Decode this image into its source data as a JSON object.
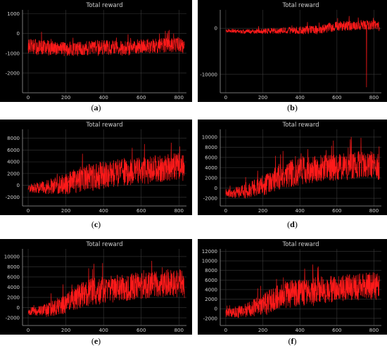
{
  "styles": {
    "bg": "#000000",
    "grid": "#3a3a3a",
    "axis": "#9a9a9a",
    "line": "#ff1a1a",
    "title": "#cfcfcf",
    "tick": "#d0d0d0"
  },
  "chart_data": [
    {
      "type": "line",
      "caption_letter": "a",
      "title": "Total reward",
      "xlim": [
        -30,
        840
      ],
      "ylim": [
        -3000,
        1200
      ],
      "xticks": [
        0,
        200,
        400,
        600,
        800
      ],
      "yticks": [
        -2000,
        -1000,
        0,
        1000
      ],
      "ytick_labels": [
        "-2000",
        "-1000",
        "0",
        "1000"
      ],
      "n_points": 830,
      "series": [
        {
          "x": [
            0,
            100,
            200,
            300,
            400,
            500,
            600,
            700,
            800,
            830
          ],
          "y": [
            -650,
            -700,
            -800,
            -750,
            -700,
            -750,
            -650,
            -600,
            -550,
            -700
          ]
        }
      ]
    },
    {
      "type": "line",
      "caption_letter": "b",
      "title": "Total reward",
      "xlim": [
        -30,
        840
      ],
      "ylim": [
        -14000,
        4000
      ],
      "xticks": [
        0,
        200,
        400,
        600,
        800
      ],
      "yticks": [
        -10000,
        0
      ],
      "ytick_labels": [
        "-10000",
        "0"
      ],
      "n_points": 830,
      "series": [
        {
          "x": [
            0,
            100,
            200,
            300,
            400,
            500,
            600,
            700,
            800,
            830
          ],
          "y": [
            -500,
            -700,
            -600,
            -500,
            -400,
            -300,
            400,
            600,
            800,
            500
          ]
        }
      ]
    },
    {
      "type": "line",
      "caption_letter": "c",
      "title": "Total reward",
      "xlim": [
        -30,
        840
      ],
      "ylim": [
        -3500,
        9500
      ],
      "xticks": [
        0,
        200,
        400,
        600,
        800
      ],
      "yticks": [
        -2000,
        0,
        2000,
        4000,
        6000,
        8000
      ],
      "ytick_labels": [
        "-2000",
        "0",
        "2000",
        "4000",
        "6000",
        "8000"
      ],
      "n_points": 830,
      "series": [
        {
          "x": [
            0,
            100,
            200,
            300,
            400,
            500,
            600,
            700,
            800,
            830
          ],
          "y": [
            -500,
            -300,
            300,
            1200,
            1800,
            2200,
            2400,
            2800,
            3200,
            3000
          ]
        }
      ]
    },
    {
      "type": "line",
      "caption_letter": "d",
      "title": "Total reward",
      "xlim": [
        -30,
        840
      ],
      "ylim": [
        -3500,
        11500
      ],
      "xticks": [
        0,
        200,
        400,
        600,
        800
      ],
      "yticks": [
        -2000,
        0,
        2000,
        4000,
        6000,
        8000,
        10000
      ],
      "ytick_labels": [
        "-2000",
        "0",
        "2000",
        "4000",
        "6000",
        "8000",
        "10000"
      ],
      "n_points": 830,
      "series": [
        {
          "x": [
            0,
            100,
            200,
            300,
            400,
            500,
            600,
            700,
            800,
            830
          ],
          "y": [
            -1000,
            -700,
            500,
            2500,
            3200,
            3800,
            4200,
            4500,
            4700,
            4200
          ]
        }
      ]
    },
    {
      "type": "line",
      "caption_letter": "e",
      "title": "Total reward",
      "xlim": [
        -30,
        840
      ],
      "ylim": [
        -3500,
        11500
      ],
      "xticks": [
        0,
        200,
        400,
        600,
        800
      ],
      "yticks": [
        -2000,
        0,
        2000,
        4000,
        6000,
        8000,
        10000
      ],
      "ytick_labels": [
        "-2000",
        "0",
        "2000",
        "4000",
        "6000",
        "8000",
        "10000"
      ],
      "n_points": 830,
      "series": [
        {
          "x": [
            0,
            100,
            200,
            300,
            400,
            500,
            600,
            700,
            800,
            830
          ],
          "y": [
            -800,
            -500,
            800,
            2800,
            3400,
            3900,
            4300,
            4600,
            4900,
            4500
          ]
        }
      ]
    },
    {
      "type": "line",
      "caption_letter": "f",
      "title": "Total reward",
      "xlim": [
        -30,
        840
      ],
      "ylim": [
        -3500,
        12500
      ],
      "xticks": [
        0,
        200,
        400,
        600,
        800
      ],
      "yticks": [
        -2000,
        0,
        2000,
        4000,
        6000,
        8000,
        10000,
        12000
      ],
      "ytick_labels": [
        "-2000",
        "0",
        "2000",
        "4000",
        "6000",
        "8000",
        "10000",
        "12000"
      ],
      "n_points": 830,
      "series": [
        {
          "x": [
            0,
            100,
            200,
            300,
            400,
            500,
            600,
            700,
            800,
            830
          ],
          "y": [
            -800,
            -500,
            900,
            2800,
            3400,
            3800,
            4200,
            4500,
            4800,
            4400
          ]
        }
      ]
    }
  ]
}
